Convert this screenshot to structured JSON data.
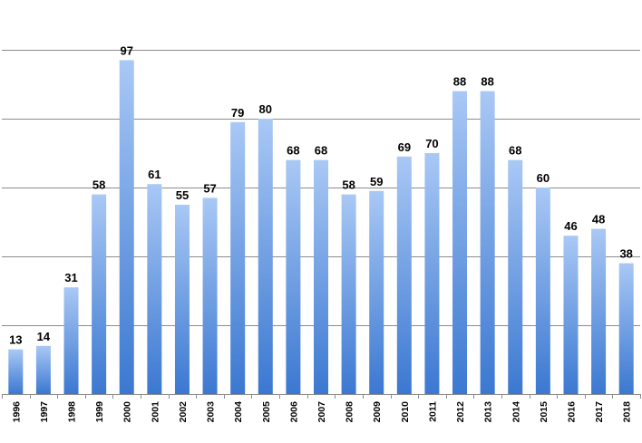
{
  "chart_data": {
    "type": "bar",
    "title": "",
    "xlabel": "",
    "ylabel": "",
    "categories": [
      "1996",
      "1997",
      "1998",
      "1999",
      "2000",
      "2001",
      "2002",
      "2003",
      "2004",
      "2005",
      "2006",
      "2007",
      "2008",
      "2009",
      "2010",
      "2011",
      "2012",
      "2013",
      "2014",
      "2015",
      "2016",
      "2017",
      "2018"
    ],
    "values": [
      13,
      14,
      31,
      58,
      97,
      61,
      55,
      57,
      79,
      80,
      68,
      68,
      58,
      59,
      69,
      70,
      88,
      88,
      68,
      60,
      46,
      48,
      38
    ],
    "ylim": [
      0,
      100
    ],
    "y_gridlines": [
      20,
      40,
      60,
      80,
      100
    ],
    "y_tick_labels_shown": false,
    "grid": true,
    "legend": "none",
    "bar_gradient": {
      "top": "#a9c8f5",
      "bottom": "#3b78d1"
    }
  }
}
